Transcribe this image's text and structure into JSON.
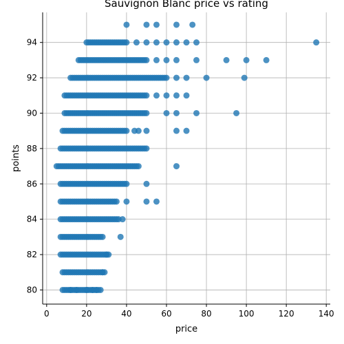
{
  "chart_data": {
    "type": "scatter",
    "title": "Sauvignon Blanc price vs rating",
    "xlabel": "price",
    "ylabel": "points",
    "xlim": [
      -2,
      142
    ],
    "ylim": [
      79.2,
      95.7
    ],
    "xticks": [
      0,
      20,
      40,
      60,
      80,
      100,
      120,
      140
    ],
    "yticks": [
      80,
      82,
      84,
      86,
      88,
      90,
      92,
      94
    ],
    "grid": true,
    "marker_color": "#1f77b4",
    "marker_alpha": 0.8,
    "series": [
      {
        "points": [
          {
            "points": 80,
            "price_min": 8,
            "price_max": 27,
            "extra": [
              12,
              15,
              20,
              23,
              25
            ]
          },
          {
            "points": 81,
            "price_min": 8,
            "price_max": 29,
            "extra": [
              28
            ]
          },
          {
            "points": 82,
            "price_min": 7,
            "price_max": 31,
            "extra": [
              30
            ]
          },
          {
            "points": 83,
            "price_min": 7,
            "price_max": 28,
            "extra": [
              37
            ]
          },
          {
            "points": 84,
            "price_min": 7,
            "price_max": 36,
            "extra": [
              38
            ]
          },
          {
            "points": 85,
            "price_min": 7,
            "price_max": 35,
            "extra": [
              40,
              50,
              55
            ]
          },
          {
            "points": 86,
            "price_min": 7,
            "price_max": 40,
            "extra": [
              50
            ]
          },
          {
            "points": 87,
            "price_min": 5,
            "price_max": 46,
            "extra": [
              65
            ]
          },
          {
            "points": 88,
            "price_min": 7,
            "price_max": 50,
            "extra": []
          },
          {
            "points": 89,
            "price_min": 8,
            "price_max": 40,
            "extra": [
              44,
              46,
              50,
              65,
              70
            ]
          },
          {
            "points": 90,
            "price_min": 9,
            "price_max": 50,
            "extra": [
              60,
              65,
              75,
              95
            ]
          },
          {
            "points": 91,
            "price_min": 9,
            "price_max": 50,
            "extra": [
              55,
              60,
              65,
              70
            ]
          },
          {
            "points": 92,
            "price_min": 12,
            "price_max": 60,
            "extra": [
              65,
              70,
              80,
              99
            ]
          },
          {
            "points": 93,
            "price_min": 16,
            "price_max": 50,
            "extra": [
              55,
              60,
              65,
              75,
              90,
              100,
              110
            ]
          },
          {
            "points": 94,
            "price_min": 20,
            "price_max": 40,
            "extra": [
              45,
              50,
              55,
              60,
              65,
              70,
              75,
              135
            ]
          },
          {
            "points": 95,
            "price_min": 40,
            "price_max": 40,
            "extra": [
              50,
              55,
              65,
              73
            ]
          }
        ]
      }
    ]
  }
}
